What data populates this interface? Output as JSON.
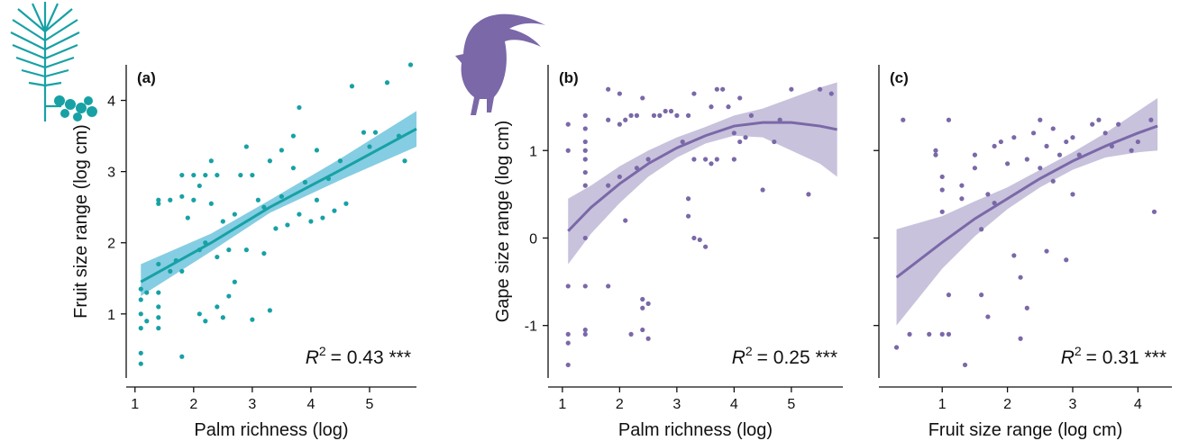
{
  "chart_data": [
    {
      "type": "scatter",
      "panel_label": "(a)",
      "xlabel": "Palm richness (log)",
      "ylabel": "Fruit size range (log cm)",
      "color": "#17a1a5",
      "band_color": "#5cbcd8",
      "xlim": [
        0.85,
        5.8
      ],
      "ylim": [
        0.1,
        4.5
      ],
      "xticks": [
        1,
        2,
        3,
        4,
        5
      ],
      "yticks": [
        1,
        2,
        3,
        4
      ],
      "ytick_labels": true,
      "annotation": {
        "symbol": "R",
        "superscript": "2",
        "text": "= 0.43 ***"
      },
      "x": [
        1.1,
        1.1,
        1.1,
        1.1,
        1.1,
        1.1,
        1.2,
        1.2,
        1.4,
        1.4,
        1.4,
        1.4,
        1.4,
        1.4,
        1.4,
        1.6,
        1.6,
        1.7,
        1.8,
        1.8,
        1.8,
        1.8,
        1.9,
        2.0,
        2.0,
        2.1,
        2.1,
        2.1,
        2.2,
        2.2,
        2.2,
        2.3,
        2.3,
        2.4,
        2.4,
        2.4,
        2.5,
        2.5,
        2.6,
        2.6,
        2.7,
        2.7,
        2.8,
        2.9,
        2.9,
        3.0,
        3.0,
        3.1,
        3.2,
        3.2,
        3.3,
        3.3,
        3.4,
        3.5,
        3.5,
        3.6,
        3.7,
        3.7,
        3.8,
        3.8,
        3.9,
        4.0,
        4.1,
        4.1,
        4.2,
        4.3,
        4.4,
        4.5,
        4.6,
        4.7,
        4.9,
        5.0,
        5.1,
        5.3,
        5.5,
        5.6,
        5.7
      ],
      "values": [
        0.3,
        0.45,
        0.8,
        1.0,
        1.2,
        1.35,
        0.9,
        1.3,
        0.8,
        0.95,
        1.1,
        1.3,
        1.7,
        2.55,
        2.6,
        1.6,
        2.6,
        1.75,
        0.4,
        1.6,
        2.65,
        2.95,
        2.35,
        2.6,
        2.95,
        1.0,
        1.9,
        2.8,
        0.9,
        2.0,
        2.95,
        3.15,
        2.55,
        1.1,
        1.8,
        2.95,
        0.95,
        2.3,
        1.25,
        1.9,
        1.45,
        2.4,
        2.95,
        1.9,
        3.35,
        0.92,
        2.95,
        2.6,
        1.85,
        2.5,
        1.05,
        3.15,
        2.2,
        2.65,
        3.3,
        2.25,
        3.5,
        3.05,
        3.9,
        2.4,
        2.85,
        2.3,
        2.6,
        3.3,
        2.35,
        2.9,
        2.45,
        3.15,
        2.55,
        4.2,
        3.55,
        3.35,
        3.55,
        4.25,
        3.5,
        3.15,
        4.5
      ],
      "fit": {
        "x": [
          1.1,
          2.3,
          3.3,
          4.5,
          5.8
        ],
        "y": [
          1.45,
          2.0,
          2.5,
          3.02,
          3.6
        ],
        "lower": [
          1.25,
          1.88,
          2.42,
          2.88,
          3.35
        ],
        "upper": [
          1.7,
          2.13,
          2.6,
          3.18,
          3.85
        ]
      }
    },
    {
      "type": "scatter",
      "panel_label": "(b)",
      "xlabel": "Palm richness (log)",
      "ylabel": "Gape size range (log cm)",
      "color": "#7a68a8",
      "band_color": "#b6aed0",
      "xlim": [
        0.75,
        5.9
      ],
      "ylim": [
        -1.6,
        1.98
      ],
      "xticks": [
        1,
        2,
        3,
        4,
        5
      ],
      "yticks": [
        -1,
        0,
        1
      ],
      "ytick_labels": true,
      "annotation": {
        "symbol": "R",
        "superscript": "2",
        "text": "= 0.25 ***"
      },
      "x": [
        1.1,
        1.1,
        1.1,
        1.1,
        1.1,
        1.1,
        1.4,
        1.4,
        1.4,
        1.4,
        1.4,
        1.4,
        1.4,
        1.4,
        1.4,
        1.4,
        1.4,
        1.8,
        1.8,
        1.8,
        1.8,
        2.0,
        2.0,
        2.0,
        2.1,
        2.1,
        2.2,
        2.2,
        2.3,
        2.3,
        2.4,
        2.4,
        2.4,
        2.4,
        2.5,
        2.5,
        2.5,
        2.6,
        2.7,
        2.8,
        2.9,
        3.0,
        3.1,
        3.2,
        3.2,
        3.2,
        3.3,
        3.3,
        3.3,
        3.4,
        3.5,
        3.5,
        3.6,
        3.6,
        3.7,
        3.7,
        3.8,
        3.9,
        4.0,
        4.0,
        4.1,
        4.1,
        4.2,
        4.3,
        4.5,
        4.7,
        4.8,
        5.0,
        5.3,
        5.5,
        5.7
      ],
      "values": [
        -1.45,
        -1.1,
        -1.2,
        -0.55,
        1.3,
        1.0,
        -1.05,
        -1.1,
        -0.55,
        0.0,
        0.6,
        0.75,
        0.9,
        1.0,
        1.1,
        1.25,
        1.4,
        -0.55,
        0.6,
        1.35,
        1.7,
        1.65,
        1.3,
        0.7,
        0.2,
        1.35,
        -1.1,
        1.4,
        0.8,
        1.4,
        -0.7,
        -0.8,
        -1.05,
        1.6,
        -0.75,
        -1.15,
        0.9,
        1.4,
        1.4,
        1.45,
        1.45,
        1.4,
        1.1,
        0.45,
        0.25,
        1.4,
        0.0,
        0.9,
        1.65,
        -0.02,
        0.9,
        -0.1,
        1.5,
        0.85,
        1.7,
        0.9,
        1.7,
        1.5,
        1.2,
        0.9,
        1.6,
        1.1,
        1.15,
        1.4,
        0.55,
        1.1,
        1.35,
        1.7,
        0.5,
        1.7,
        1.65
      ],
      "fit": {
        "x": [
          1.1,
          1.5,
          2,
          2.5,
          3,
          3.5,
          4,
          4.5,
          5,
          5.5,
          5.8
        ],
        "y": [
          0.08,
          0.35,
          0.62,
          0.85,
          1.03,
          1.17,
          1.28,
          1.32,
          1.32,
          1.28,
          1.24
        ],
        "lower": [
          -0.3,
          0.05,
          0.4,
          0.7,
          0.92,
          1.08,
          1.17,
          1.15,
          1.0,
          0.85,
          0.7
        ],
        "upper": [
          0.45,
          0.6,
          0.82,
          1.0,
          1.15,
          1.27,
          1.4,
          1.48,
          1.6,
          1.72,
          1.78
        ]
      }
    },
    {
      "type": "scatter",
      "panel_label": "(c)",
      "xlabel": "Fruit size range (log cm)",
      "color": "#7a68a8",
      "band_color": "#b6aed0",
      "xlim": [
        0.03,
        4.52
      ],
      "ylim": [
        -1.6,
        1.98
      ],
      "xticks": [
        1,
        2,
        3,
        4
      ],
      "yticks": [
        -1,
        0,
        1
      ],
      "ytick_labels": false,
      "annotation": {
        "symbol": "R",
        "superscript": "2",
        "text": "= 0.31 ***"
      },
      "x": [
        0.3,
        0.4,
        0.5,
        0.8,
        0.9,
        0.9,
        1.0,
        1.0,
        1.0,
        1.0,
        1.1,
        1.1,
        1.1,
        1.3,
        1.3,
        1.35,
        1.5,
        1.5,
        1.6,
        1.6,
        1.7,
        1.7,
        1.8,
        1.8,
        1.9,
        2.0,
        2.1,
        2.1,
        2.2,
        2.2,
        2.3,
        2.3,
        2.4,
        2.5,
        2.5,
        2.6,
        2.6,
        2.7,
        2.7,
        2.8,
        2.9,
        2.9,
        3.0,
        3.0,
        3.1,
        3.3,
        3.4,
        3.5,
        3.6,
        3.7,
        3.9,
        4.0,
        4.2,
        4.25
      ],
      "values": [
        -1.25,
        1.35,
        -1.1,
        -1.1,
        1.0,
        0.95,
        -1.1,
        0.3,
        0.55,
        0.7,
        -1.1,
        1.35,
        -0.65,
        0.45,
        0.6,
        -1.45,
        0.8,
        0.95,
        -0.65,
        0.1,
        -0.9,
        0.5,
        1.05,
        0.4,
        1.1,
        0.85,
        -0.2,
        1.15,
        -1.15,
        -0.45,
        -0.8,
        0.9,
        1.2,
        1.35,
        0.8,
        -0.15,
        1.05,
        1.25,
        0.65,
        0.95,
        -0.25,
        1.1,
        1.15,
        0.5,
        0.95,
        1.3,
        1.35,
        1.2,
        1.05,
        1.3,
        1.0,
        1.1,
        1.35,
        0.3
      ],
      "fit": {
        "x": [
          0.3,
          1,
          1.5,
          2,
          2.5,
          3,
          3.5,
          4,
          4.3
        ],
        "y": [
          -0.45,
          -0.05,
          0.22,
          0.45,
          0.68,
          0.88,
          1.05,
          1.2,
          1.28
        ],
        "lower": [
          -1.0,
          -0.35,
          0.02,
          0.33,
          0.58,
          0.78,
          0.92,
          0.98,
          1.0
        ],
        "upper": [
          0.1,
          0.25,
          0.42,
          0.58,
          0.78,
          0.98,
          1.2,
          1.45,
          1.6
        ]
      }
    }
  ]
}
